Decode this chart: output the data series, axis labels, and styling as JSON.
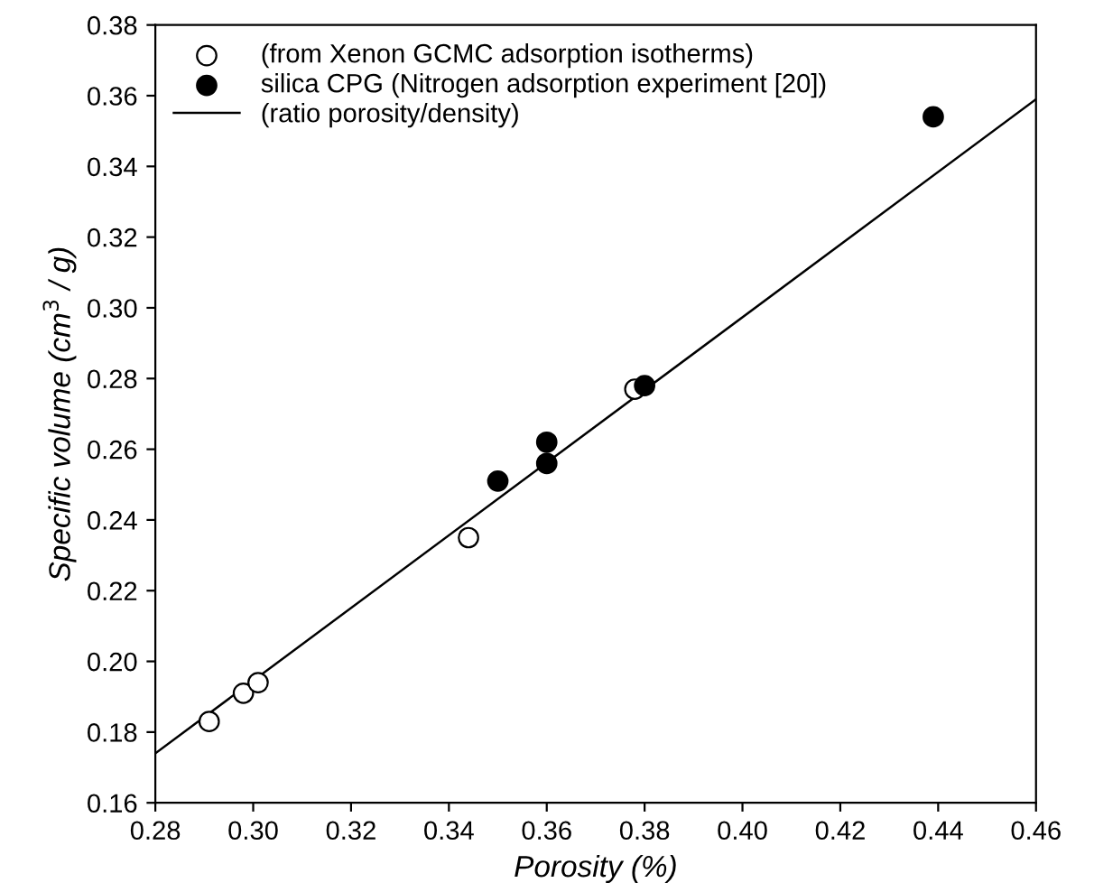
{
  "chart_data": {
    "type": "scatter",
    "xlabel": "Porosity (%)",
    "ylabel": "Specific volume (cm$^{3}$ / g)",
    "xlim": [
      0.28,
      0.46
    ],
    "ylim": [
      0.16,
      0.38
    ],
    "xticks": [
      {
        "value": 0.28,
        "label": "0.28"
      },
      {
        "value": 0.3,
        "label": "0.30"
      },
      {
        "value": 0.32,
        "label": "0.32"
      },
      {
        "value": 0.34,
        "label": "0.34"
      },
      {
        "value": 0.36,
        "label": "0.36"
      },
      {
        "value": 0.38,
        "label": "0.38"
      },
      {
        "value": 0.4,
        "label": "0.40"
      },
      {
        "value": 0.42,
        "label": "0.42"
      },
      {
        "value": 0.44,
        "label": "0.44"
      },
      {
        "value": 0.46,
        "label": "0.46"
      }
    ],
    "yticks": [
      {
        "value": 0.16,
        "label": "0.16"
      },
      {
        "value": 0.18,
        "label": "0.18"
      },
      {
        "value": 0.2,
        "label": "0.20"
      },
      {
        "value": 0.22,
        "label": "0.22"
      },
      {
        "value": 0.24,
        "label": "0.24"
      },
      {
        "value": 0.26,
        "label": "0.26"
      },
      {
        "value": 0.28,
        "label": "0.28"
      },
      {
        "value": 0.3,
        "label": "0.30"
      },
      {
        "value": 0.32,
        "label": "0.32"
      },
      {
        "value": 0.34,
        "label": "0.34"
      },
      {
        "value": 0.36,
        "label": "0.36"
      },
      {
        "value": 0.38,
        "label": "0.38"
      }
    ],
    "grid": false,
    "legend": "top left",
    "marker": "circle",
    "series": [
      {
        "name": "(from Xenon GCMC adsorption isotherms)",
        "color": "#ffffff",
        "x": [
          0.291,
          0.298,
          0.301,
          0.344,
          0.378
        ],
        "values": [
          0.183,
          0.191,
          0.194,
          0.235,
          0.277
        ]
      },
      {
        "name": "silica CPG (Nitrogen adsorption experiment [20])",
        "color": "#000000",
        "x": [
          0.35,
          0.36,
          0.36,
          0.38,
          0.439
        ],
        "values": [
          0.251,
          0.262,
          0.256,
          0.278,
          0.354
        ]
      },
      {
        "name": "(ratio porosity/density)",
        "type": "line",
        "color": "#000000",
        "x": [
          0.28,
          0.46
        ],
        "values": [
          0.174,
          0.359
        ],
        "line_style": "solid",
        "marker": "none"
      }
    ]
  }
}
